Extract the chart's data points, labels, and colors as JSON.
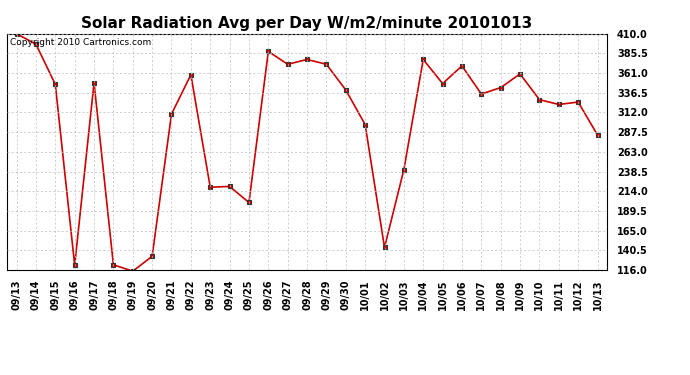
{
  "title": "Solar Radiation Avg per Day W/m2/minute 20101013",
  "copyright": "Copyright 2010 Cartronics.com",
  "labels": [
    "09/13",
    "09/14",
    "09/15",
    "09/16",
    "09/17",
    "09/18",
    "09/19",
    "09/20",
    "09/21",
    "09/22",
    "09/23",
    "09/24",
    "09/25",
    "09/26",
    "09/27",
    "09/28",
    "09/29",
    "09/30",
    "10/01",
    "10/02",
    "10/03",
    "10/04",
    "10/05",
    "10/06",
    "10/07",
    "10/08",
    "10/09",
    "10/10",
    "10/11",
    "10/12",
    "10/13"
  ],
  "values": [
    410.0,
    397.0,
    347.0,
    122.0,
    349.0,
    122.5,
    114.5,
    133.0,
    310.0,
    359.0,
    219.0,
    220.0,
    200.0,
    388.0,
    372.0,
    378.0,
    372.0,
    340.0,
    297.0,
    144.0,
    241.0,
    378.0,
    348.0,
    370.0,
    335.0,
    343.0,
    360.0,
    328.0,
    322.0,
    325.0,
    284.0
  ],
  "ylim": [
    116.0,
    410.0
  ],
  "yticks": [
    116.0,
    140.5,
    165.0,
    189.5,
    214.0,
    238.5,
    263.0,
    287.5,
    312.0,
    336.5,
    361.0,
    385.5,
    410.0
  ],
  "line_color": "#cc0000",
  "marker_color": "#cc0000",
  "bg_color": "#ffffff",
  "grid_color": "#bbbbbb",
  "title_fontsize": 11,
  "tick_fontsize": 7,
  "copyright_fontsize": 6.5
}
